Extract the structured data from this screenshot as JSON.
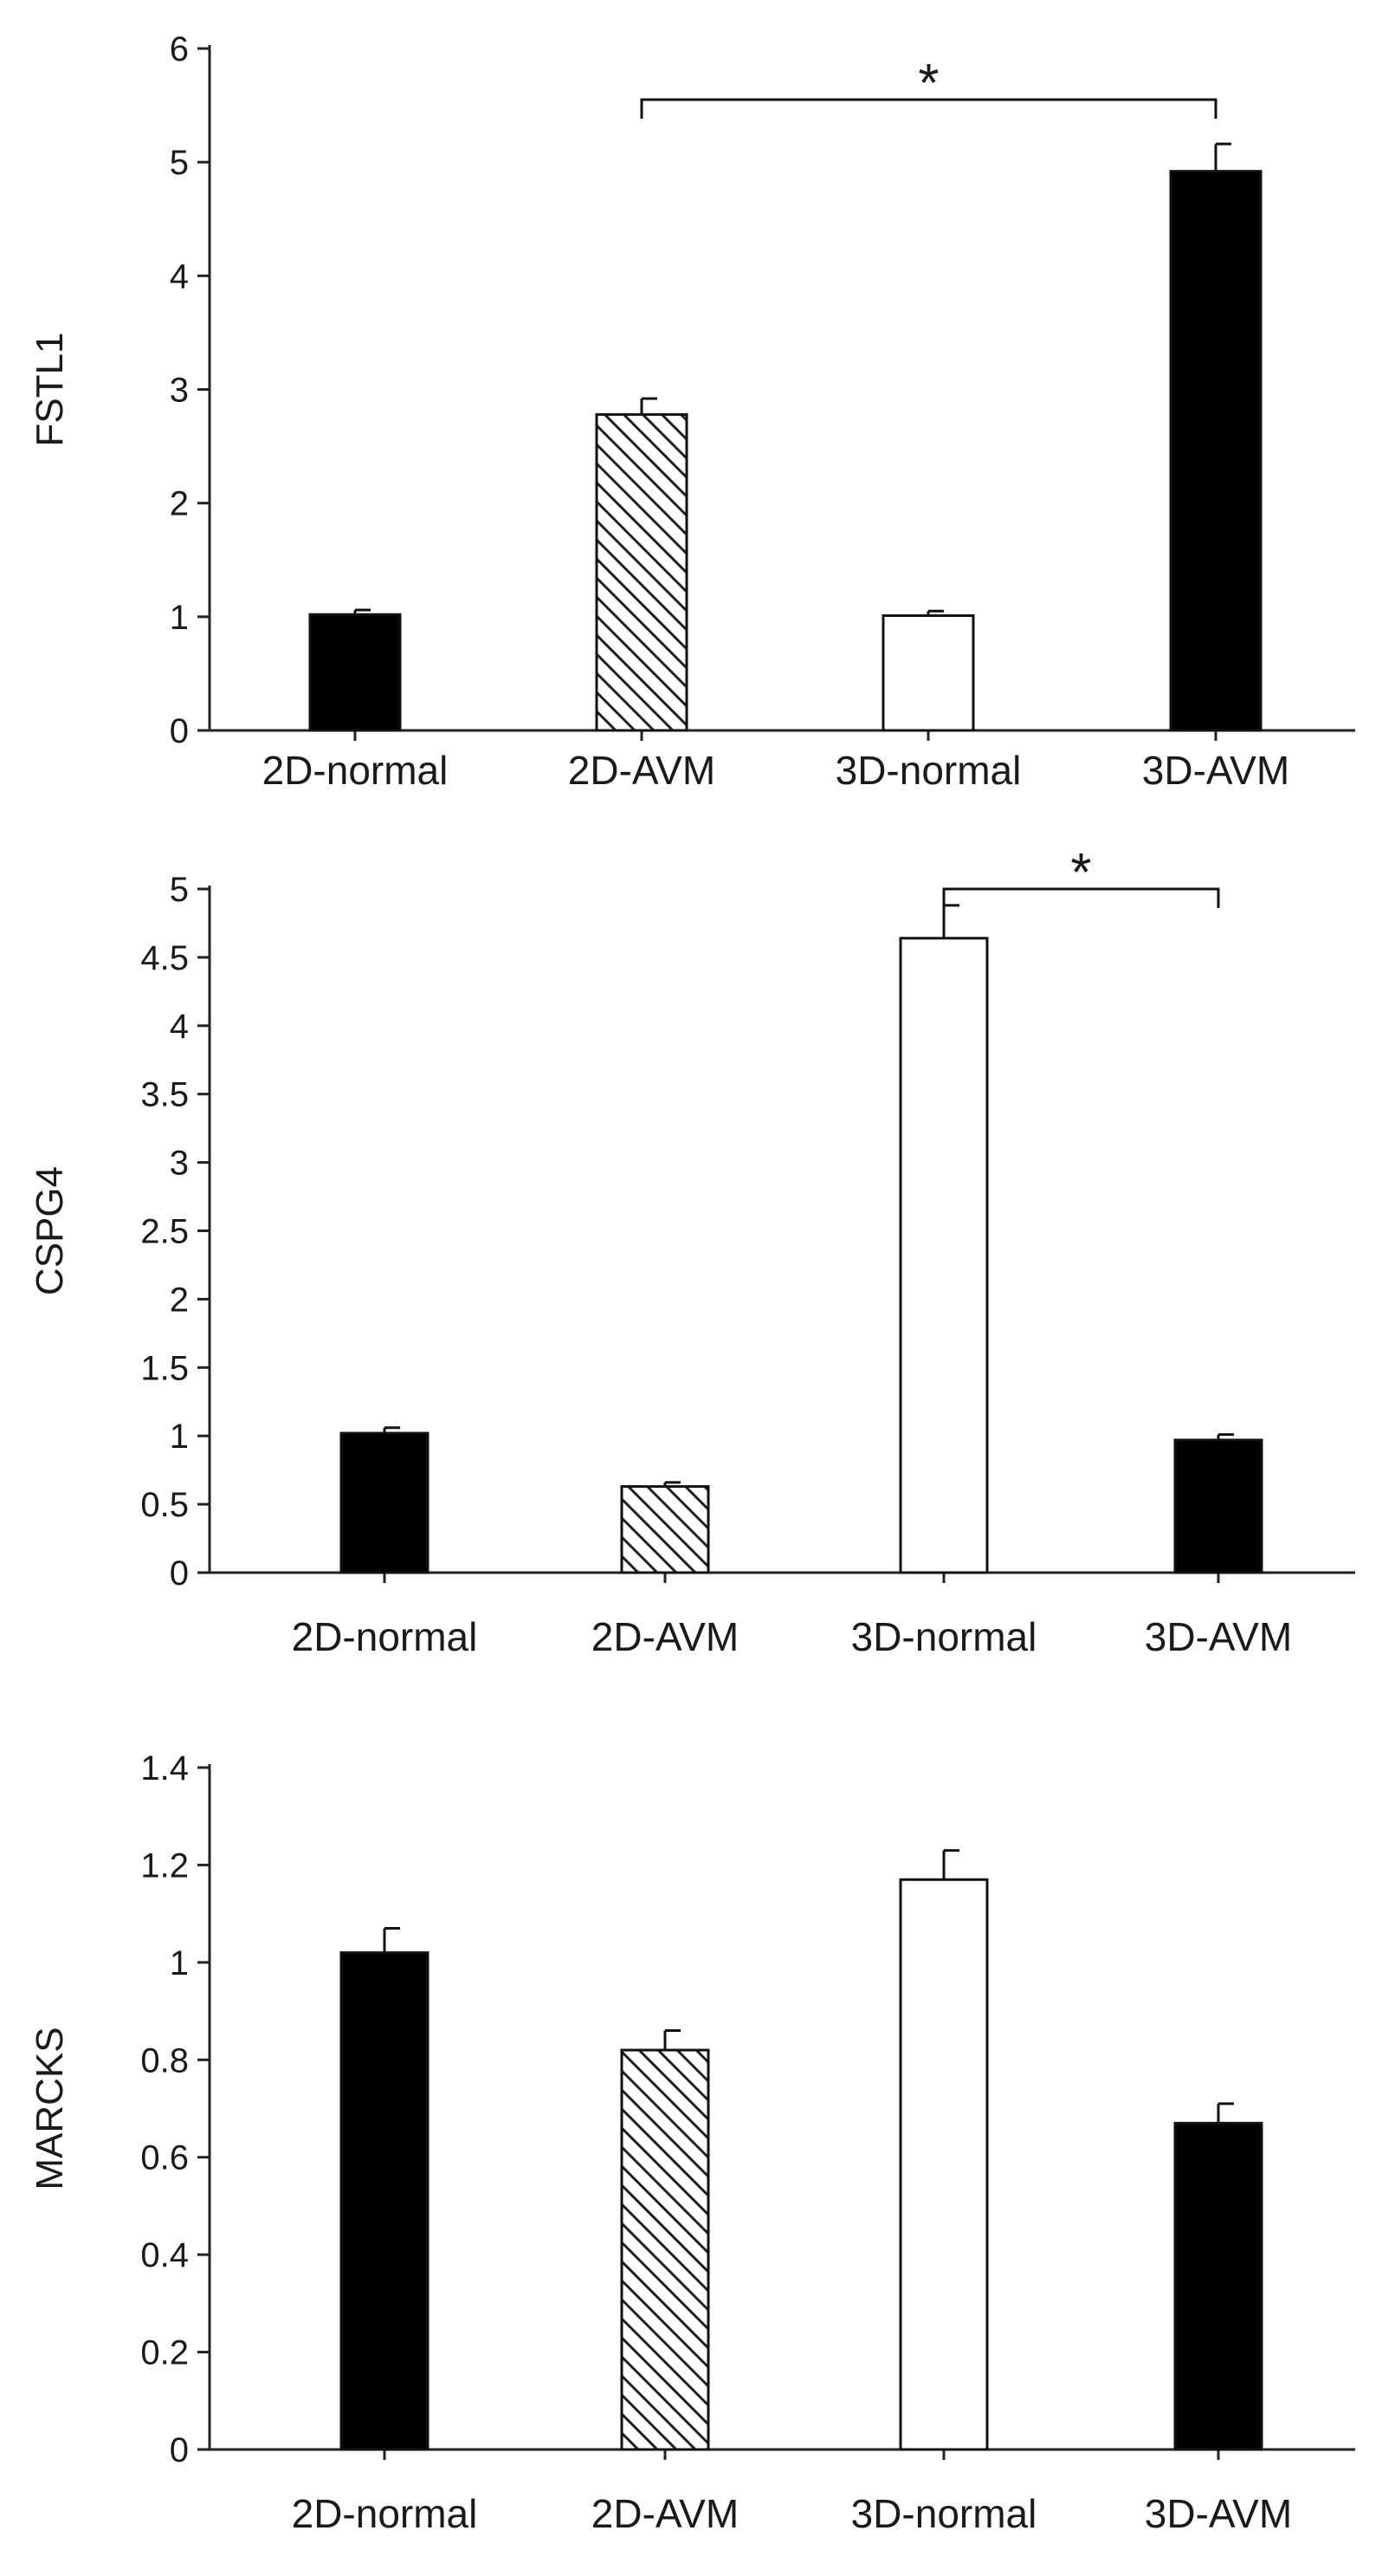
{
  "chart_data": [
    {
      "type": "bar",
      "ylabel": "FSTL1",
      "categories": [
        "2D-normal",
        "2D-AVM",
        "3D-normal",
        "3D-AVM"
      ],
      "values": [
        1.02,
        2.78,
        1.01,
        4.92
      ],
      "errors": [
        0.04,
        0.14,
        0.04,
        0.24
      ],
      "fills": [
        "solid",
        "hatched",
        "open",
        "solid"
      ],
      "ylim": [
        0,
        6
      ],
      "yticks": [
        "0",
        "1",
        "2",
        "3",
        "4",
        "5",
        "6"
      ],
      "significance": [
        {
          "from": 1,
          "to": 3,
          "label": "*",
          "y": 5.55
        }
      ]
    },
    {
      "type": "bar",
      "ylabel": "CSPG4",
      "categories": [
        "2D-normal",
        "2D-AVM",
        "3D-normal",
        "3D-AVM"
      ],
      "values": [
        1.02,
        0.63,
        4.64,
        0.97
      ],
      "errors": [
        0.04,
        0.03,
        0.24,
        0.04
      ],
      "fills": [
        "solid",
        "hatched",
        "open",
        "solid"
      ],
      "ylim": [
        0,
        5
      ],
      "yticks": [
        "0",
        "0.5",
        "1",
        "1.5",
        "2",
        "2.5",
        "3",
        "3.5",
        "4",
        "4.5",
        "5"
      ],
      "significance": [
        {
          "from": 2,
          "to": 3,
          "label": "*",
          "y": 5.0
        }
      ]
    },
    {
      "type": "bar",
      "ylabel": "MARCKS",
      "categories": [
        "2D-normal",
        "2D-AVM",
        "3D-normal",
        "3D-AVM"
      ],
      "values": [
        1.02,
        0.82,
        1.17,
        0.67
      ],
      "errors": [
        0.05,
        0.04,
        0.06,
        0.04
      ],
      "fills": [
        "solid",
        "hatched",
        "open",
        "solid"
      ],
      "ylim": [
        0,
        1.4
      ],
      "yticks": [
        "0",
        "0.2",
        "0.4",
        "0.6",
        "0.8",
        "1",
        "1.2",
        "1.4"
      ],
      "significance": []
    }
  ],
  "colors": {
    "solid": "#000000",
    "open": "#ffffff",
    "hatch": "#222222"
  }
}
